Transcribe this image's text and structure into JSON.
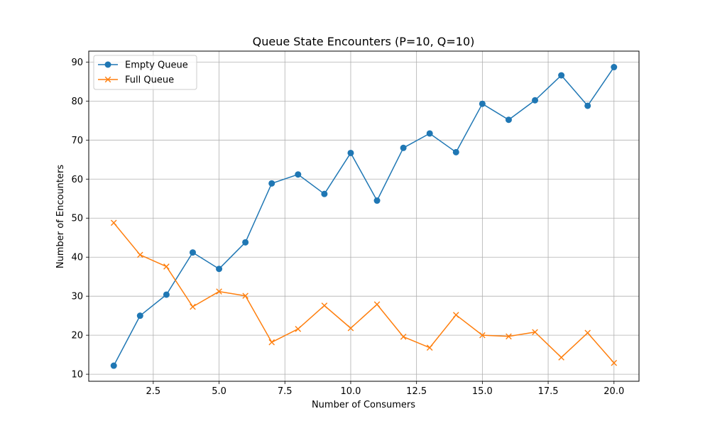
{
  "chart_data": {
    "type": "line",
    "title": "Queue State Encounters (P=10, Q=10)",
    "xlabel": "Number of Consumers",
    "ylabel": "Number of Encounters",
    "xlim": [
      0.05,
      20.95
    ],
    "ylim": [
      8.2,
      92.8
    ],
    "xticks": [
      2.5,
      5.0,
      7.5,
      10.0,
      12.5,
      15.0,
      17.5,
      20.0
    ],
    "xtick_labels": [
      "2.5",
      "5.0",
      "7.5",
      "10.0",
      "12.5",
      "15.0",
      "17.5",
      "20.0"
    ],
    "yticks": [
      10,
      20,
      30,
      40,
      50,
      60,
      70,
      80,
      90
    ],
    "ytick_labels": [
      "10",
      "20",
      "30",
      "40",
      "50",
      "60",
      "70",
      "80",
      "90"
    ],
    "grid": true,
    "legend_position": "top-left",
    "x": [
      1,
      2,
      3,
      4,
      5,
      6,
      7,
      8,
      9,
      10,
      11,
      12,
      13,
      14,
      15,
      16,
      17,
      18,
      19,
      20
    ],
    "series": [
      {
        "name": "Empty Queue",
        "color": "#1f77b4",
        "marker": "circle",
        "values": [
          12.2,
          25.0,
          30.4,
          41.2,
          37.0,
          43.8,
          58.9,
          61.2,
          56.2,
          66.7,
          54.5,
          68.0,
          71.7,
          66.9,
          79.3,
          75.2,
          80.2,
          86.6,
          78.8,
          88.7
        ]
      },
      {
        "name": "Full Queue",
        "color": "#ff7f0e",
        "marker": "x",
        "values": [
          48.8,
          40.6,
          37.6,
          27.3,
          31.2,
          30.1,
          18.2,
          21.6,
          27.6,
          21.8,
          27.9,
          19.6,
          16.8,
          25.2,
          20.0,
          19.7,
          20.8,
          14.3,
          20.6,
          12.9
        ]
      }
    ]
  }
}
